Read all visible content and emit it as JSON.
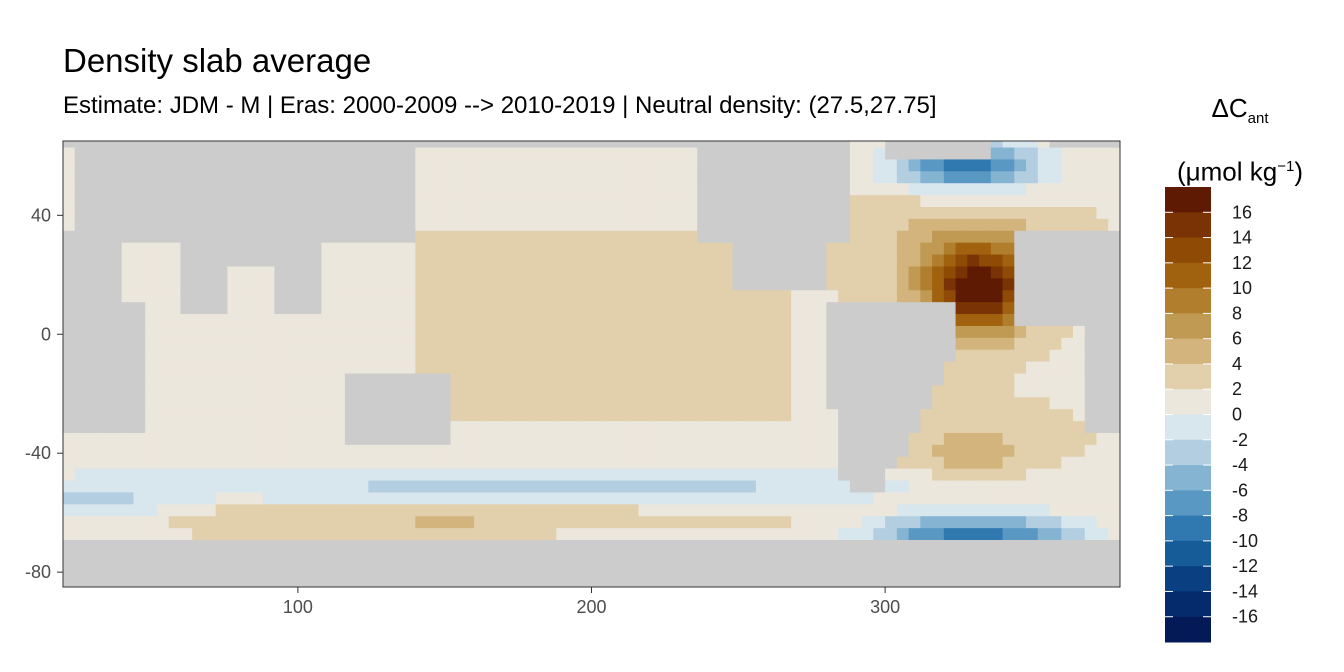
{
  "title": "Density slab average",
  "subtitle": "Estimate: JDM - M | Eras: 2000-2009 --> 2010-2019 | Neutral density: (27.5,27.75]",
  "legend": {
    "line1": "ΔC",
    "line1_sub": "ant",
    "line2_pre": "(μmol kg",
    "line2_sup": "−1",
    "line2_post": ")",
    "breaks": [
      "16",
      "14",
      "12",
      "10",
      "8",
      "6",
      "4",
      "2",
      "0",
      "-2",
      "-4",
      "-6",
      "-8",
      "-10",
      "-12",
      "-14",
      "-16"
    ],
    "colors": [
      "#5e1a02",
      "#7a3304",
      "#8f4a06",
      "#a0620e",
      "#b07e2c",
      "#c09a52",
      "#d2b47c",
      "#e2d0ac",
      "#ece7dc",
      "#d8e6ee",
      "#b2cee0",
      "#85b4d3",
      "#5a98c4",
      "#2f78b0",
      "#155c98",
      "#0a3f82",
      "#062b6c",
      "#031a57"
    ]
  },
  "chart_data": {
    "type": "heatmap",
    "title": "Density slab average",
    "subtitle": "Estimate: JDM - M | Eras: 2000-2009 --> 2010-2019 | Neutral density: (27.5,27.75]",
    "xlabel": "",
    "ylabel": "",
    "xlim": [
      20,
      380
    ],
    "ylim": [
      -85,
      65
    ],
    "x_ticks": [
      100,
      200,
      300
    ],
    "y_ticks": [
      40,
      0,
      -40,
      -80
    ],
    "legend_title": "ΔCant (μmol kg−1)",
    "legend_placement": "right",
    "grid": false,
    "land_color": "#cccccc",
    "values_summary": [
      {
        "region": "North Atlantic subtropical gyre (~320-345E, 5-30N)",
        "value_approx": 16
      },
      {
        "region": "North Atlantic subtropical periphery (~300-350E, 0-40N)",
        "value_approx": 6
      },
      {
        "region": "Pacific and Indian Ocean interiors",
        "value_approx": 0
      },
      {
        "region": "Labrador / Irminger Sea (~300-340E, 50-65N)",
        "value_approx": -10
      },
      {
        "region": "Weddell Sea (~300-360E, 65-75S)",
        "value_approx": -10
      },
      {
        "region": "Southern Ocean band (~40-60S)",
        "value_approx": -3
      },
      {
        "region": "South Atlantic (~320-350E, 30-55S)",
        "value_approx": 4
      }
    ]
  }
}
